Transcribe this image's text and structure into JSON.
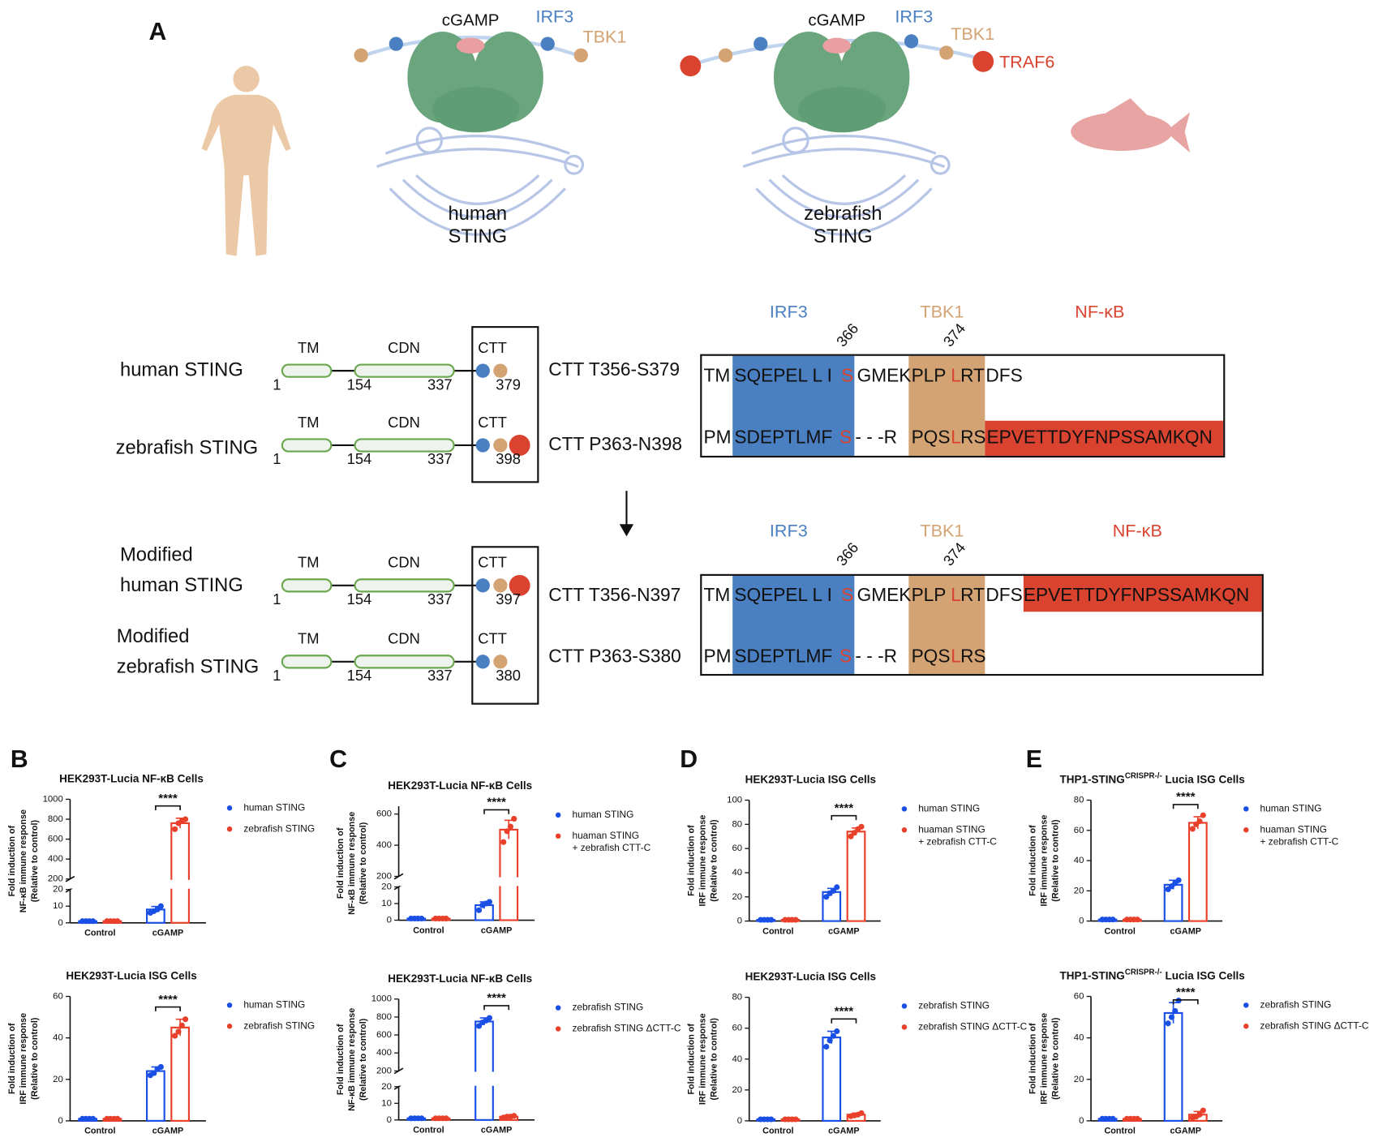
{
  "panel_labels": [
    "A",
    "B",
    "C",
    "D",
    "E"
  ],
  "schematic": [
    {
      "ligand": "cGAMP",
      "partners": [
        {
          "name": "IRF3",
          "color": "#4a7fc1"
        },
        {
          "name": "TBK1",
          "color": "#d4a373"
        }
      ],
      "name": [
        "human",
        "STING"
      ]
    },
    {
      "ligand": "cGAMP",
      "partners": [
        {
          "name": "IRF3",
          "color": "#4a7fc1"
        },
        {
          "name": "TBK1",
          "color": "#d4a373"
        },
        {
          "name": "TRAF6",
          "color": "#d9432f"
        }
      ],
      "name": [
        "zebrafish",
        "STING"
      ]
    }
  ],
  "constructs": [
    {
      "name": [
        "human STING"
      ],
      "domains": [
        "TM",
        "CDN",
        "CTT"
      ],
      "positions": [
        1,
        154,
        337,
        379
      ],
      "ctt": "CTT T356-S379",
      "sequence": [
        {
          "text": "TM"
        },
        {
          "text": "SQEPEL L I"
        },
        {
          "text": "S",
          "color": "#d9432f"
        },
        {
          "text": "GMEK"
        },
        {
          "text": "PLP"
        },
        {
          "text": "L",
          "color": "#d9432f"
        },
        {
          "text": "RT"
        },
        {
          "text": "DFS"
        }
      ]
    },
    {
      "name": [
        "zebrafish STING"
      ],
      "domains": [
        "TM",
        "CDN",
        "CTT"
      ],
      "positions": [
        1,
        154,
        337,
        398
      ],
      "ctt": "CTT P363-N398",
      "sequence": [
        {
          "text": "PM"
        },
        {
          "text": "SDEPTLMF"
        },
        {
          "text": "S",
          "color": "#d9432f"
        },
        {
          "text": "- - -R"
        },
        {
          "text": "PQS"
        },
        {
          "text": "L",
          "color": "#d9432f"
        },
        {
          "text": "RS"
        },
        {
          "text": "EPVETTDYFNPSSAMKQN"
        }
      ]
    },
    {
      "name": [
        "Modified",
        "human STING"
      ],
      "domains": [
        "TM",
        "CDN",
        "CTT"
      ],
      "positions": [
        1,
        154,
        337,
        397
      ],
      "ctt": "CTT T356-N397",
      "sequence": [
        {
          "text": "TM"
        },
        {
          "text": "SQEPEL L I"
        },
        {
          "text": "S",
          "color": "#d9432f"
        },
        {
          "text": "GMEK"
        },
        {
          "text": "PLP"
        },
        {
          "text": "L",
          "color": "#d9432f"
        },
        {
          "text": "RT"
        },
        {
          "text": "DFS"
        },
        {
          "text": "EPVETTDYFNPSSAMKQN"
        }
      ]
    },
    {
      "name": [
        "Modified",
        "zebrafish STING"
      ],
      "domains": [
        "TM",
        "CDN",
        "CTT"
      ],
      "positions": [
        1,
        154,
        337,
        380
      ],
      "ctt": "CTT P363-S380",
      "sequence": [
        {
          "text": "PM"
        },
        {
          "text": "SDEPTLMF"
        },
        {
          "text": "S",
          "color": "#d9432f"
        },
        {
          "text": "- - -R"
        },
        {
          "text": "PQS"
        },
        {
          "text": "L",
          "color": "#d9432f"
        },
        {
          "text": "RS"
        }
      ]
    }
  ],
  "alignments": [
    {
      "headers": [
        {
          "name": "IRF3",
          "color": "#4a7fc1"
        },
        {
          "name": "TBK1",
          "color": "#d4a373"
        },
        {
          "name": "NF-κB",
          "color": "#d9432f"
        }
      ],
      "sites": [
        366,
        374
      ]
    },
    {
      "headers": [
        {
          "name": "IRF3",
          "color": "#4a7fc1"
        },
        {
          "name": "TBK1",
          "color": "#d4a373"
        },
        {
          "name": "NF-κB",
          "color": "#d9432f"
        }
      ],
      "sites": [
        366,
        374
      ]
    }
  ],
  "chart_data": [
    {
      "type": "bar",
      "title": "HEK293T-Lucia NF-κB Cells",
      "ylabel": [
        "Fold induction of",
        "NF-κB immune response",
        "(Relative to control)"
      ],
      "categories": [
        "Control",
        "cGAMP"
      ],
      "series": [
        {
          "name": "human STING",
          "color": "#1a4fe6",
          "values": [
            1,
            8
          ],
          "errors": [
            0.4,
            1.8
          ],
          "points": [
            [
              1,
              1,
              1,
              1
            ],
            [
              6,
              7,
              8,
              10
            ]
          ]
        },
        {
          "name": "zebrafish STING",
          "color": "#e8402a",
          "values": [
            1,
            760
          ],
          "errors": [
            0.3,
            50
          ],
          "points": [
            [
              1,
              1,
              1,
              1
            ],
            [
              700,
              760,
              780,
              800
            ]
          ]
        }
      ],
      "ylim": [
        0,
        1000
      ],
      "yticks": [
        0,
        10,
        20,
        200,
        400,
        600,
        800,
        1000
      ],
      "ybreak": [
        20,
        200
      ],
      "annotation": "****"
    },
    {
      "type": "bar",
      "title": "HEK293T-Lucia ISG Cells",
      "ylabel": [
        "Fold induction of",
        "IRF immune response",
        "(Relative to control)"
      ],
      "categories": [
        "Control",
        "cGAMP"
      ],
      "series": [
        {
          "name": "human STING",
          "color": "#1a4fe6",
          "values": [
            1,
            24
          ],
          "errors": [
            0.3,
            2
          ],
          "points": [
            [
              1,
              1,
              1,
              1
            ],
            [
              22,
              23,
              25,
              26
            ]
          ]
        },
        {
          "name": "zebrafish STING",
          "color": "#e8402a",
          "values": [
            1,
            45
          ],
          "errors": [
            0.3,
            4
          ],
          "points": [
            [
              1,
              1,
              1,
              1
            ],
            [
              41,
              43,
              46,
              49
            ]
          ]
        }
      ],
      "ylim": [
        0,
        60
      ],
      "yticks": [
        0,
        20,
        40,
        60
      ],
      "annotation": "****"
    },
    {
      "type": "bar",
      "title": "HEK293T-Lucia NF-κB Cells",
      "ylabel": [
        "Fold induction of",
        "NF-κB immune response",
        "(Relative to control)"
      ],
      "categories": [
        "Control",
        "cGAMP"
      ],
      "series": [
        {
          "name": "human STING",
          "color": "#1a4fe6",
          "values": [
            1,
            9
          ],
          "errors": [
            0.3,
            2
          ],
          "points": [
            [
              1,
              1,
              1,
              1
            ],
            [
              6,
              9,
              10,
              11
            ]
          ]
        },
        {
          "name": [
            "huaman STING",
            "+ zebrafish CTT-C"
          ],
          "color": "#e8402a",
          "values": [
            1,
            500
          ],
          "errors": [
            0.3,
            60
          ],
          "points": [
            [
              1,
              1,
              1,
              1
            ],
            [
              420,
              490,
              520,
              570
            ]
          ]
        }
      ],
      "ylim": [
        0,
        650
      ],
      "yticks": [
        0,
        10,
        20,
        200,
        400,
        600
      ],
      "ybreak": [
        20,
        200
      ],
      "annotation": "****"
    },
    {
      "type": "bar",
      "title": "HEK293T-Lucia NF-κB Cells",
      "ylabel": [
        "Fold induction of",
        "NF-κB immune response",
        "(Relative to control)"
      ],
      "categories": [
        "Control",
        "cGAMP"
      ],
      "series": [
        {
          "name": "zebrafish STING",
          "color": "#1a4fe6",
          "values": [
            1,
            750
          ],
          "errors": [
            0.3,
            40
          ],
          "points": [
            [
              1,
              1,
              1,
              1
            ],
            [
              700,
              740,
              760,
              790
            ]
          ]
        },
        {
          "name": "zebrafish STING ΔCTT-C",
          "color": "#e8402a",
          "values": [
            1,
            2
          ],
          "errors": [
            0.2,
            0.5
          ],
          "points": [
            [
              1,
              1,
              1,
              1
            ],
            [
              1.5,
              2,
              2,
              2.5
            ]
          ]
        }
      ],
      "ylim": [
        0,
        1000
      ],
      "yticks": [
        0,
        10,
        20,
        200,
        400,
        600,
        800,
        1000
      ],
      "ybreak": [
        20,
        200
      ],
      "annotation": "****"
    },
    {
      "type": "bar",
      "title": "HEK293T-Lucia ISG Cells",
      "ylabel": [
        "Fold induction of",
        "IRF immune response",
        "(Relative to control)"
      ],
      "categories": [
        "Control",
        "cGAMP"
      ],
      "series": [
        {
          "name": "human STING",
          "color": "#1a4fe6",
          "values": [
            1,
            24
          ],
          "errors": [
            0.3,
            3
          ],
          "points": [
            [
              1,
              1,
              1,
              1
            ],
            [
              20,
              23,
              25,
              28
            ]
          ]
        },
        {
          "name": [
            "huaman STING",
            "+ zebrafish CTT-C"
          ],
          "color": "#e8402a",
          "values": [
            1,
            74
          ],
          "errors": [
            0.3,
            3
          ],
          "points": [
            [
              1,
              1,
              1,
              1
            ],
            [
              70,
              73,
              76,
              78
            ]
          ]
        }
      ],
      "ylim": [
        0,
        100
      ],
      "yticks": [
        0,
        20,
        40,
        60,
        80,
        100
      ],
      "annotation": "****"
    },
    {
      "type": "bar",
      "title": "HEK293T-Lucia ISG Cells",
      "ylabel": [
        "Fold induction of",
        "IRF immune response",
        "(Relative to control)"
      ],
      "categories": [
        "Control",
        "cGAMP"
      ],
      "series": [
        {
          "name": "zebrafish STING",
          "color": "#1a4fe6",
          "values": [
            1,
            54
          ],
          "errors": [
            0.3,
            4
          ],
          "points": [
            [
              1,
              1,
              1,
              1
            ],
            [
              48,
              52,
              55,
              58
            ]
          ]
        },
        {
          "name": "zebrafish STING ΔCTT-C",
          "color": "#e8402a",
          "values": [
            1,
            4
          ],
          "errors": [
            0.3,
            1
          ],
          "points": [
            [
              1,
              1,
              1,
              1
            ],
            [
              3,
              3.5,
              4,
              5
            ]
          ]
        }
      ],
      "ylim": [
        0,
        80
      ],
      "yticks": [
        0,
        20,
        40,
        60,
        80
      ],
      "annotation": "****"
    },
    {
      "type": "bar",
      "title": "THP1-STING",
      "title_superscript": "CRISPR-/-",
      "title_suffix": " Lucia ISG Cells",
      "ylabel": [
        "Fold induction of",
        "IRF immune response",
        "(Relative to control)"
      ],
      "categories": [
        "Control",
        "cGAMP"
      ],
      "series": [
        {
          "name": "human STING",
          "color": "#1a4fe6",
          "values": [
            1,
            24
          ],
          "errors": [
            0.3,
            3
          ],
          "points": [
            [
              1,
              1,
              1,
              1
            ],
            [
              21,
              23,
              25,
              27
            ]
          ]
        },
        {
          "name": [
            "huaman STING",
            "+ zebrafish CTT-C"
          ],
          "color": "#e8402a",
          "values": [
            1,
            65
          ],
          "errors": [
            0.3,
            4
          ],
          "points": [
            [
              1,
              1,
              1,
              1
            ],
            [
              61,
              64,
              66,
              70
            ]
          ]
        }
      ],
      "ylim": [
        0,
        80
      ],
      "yticks": [
        0,
        20,
        40,
        60,
        80
      ],
      "annotation": "****"
    },
    {
      "type": "bar",
      "title": "THP1-STING",
      "title_superscript": "CRISPR-/-",
      "title_suffix": " Lucia ISG Cells",
      "ylabel": [
        "Fold induction of",
        "IRF immune response",
        "(Relative to control)"
      ],
      "categories": [
        "Control",
        "cGAMP"
      ],
      "series": [
        {
          "name": "zebrafish STING",
          "color": "#1a4fe6",
          "values": [
            1,
            52
          ],
          "errors": [
            0.3,
            5
          ],
          "points": [
            [
              1,
              1,
              1,
              1
            ],
            [
              47,
              50,
              53,
              58
            ]
          ]
        },
        {
          "name": "zebrafish STING ΔCTT-C",
          "color": "#e8402a",
          "values": [
            1,
            3
          ],
          "errors": [
            0.3,
            1.5
          ],
          "points": [
            [
              1,
              1,
              1,
              1
            ],
            [
              1.5,
              2,
              3,
              5
            ]
          ]
        }
      ],
      "ylim": [
        0,
        60
      ],
      "yticks": [
        0,
        20,
        40,
        60
      ],
      "annotation": "****"
    }
  ]
}
